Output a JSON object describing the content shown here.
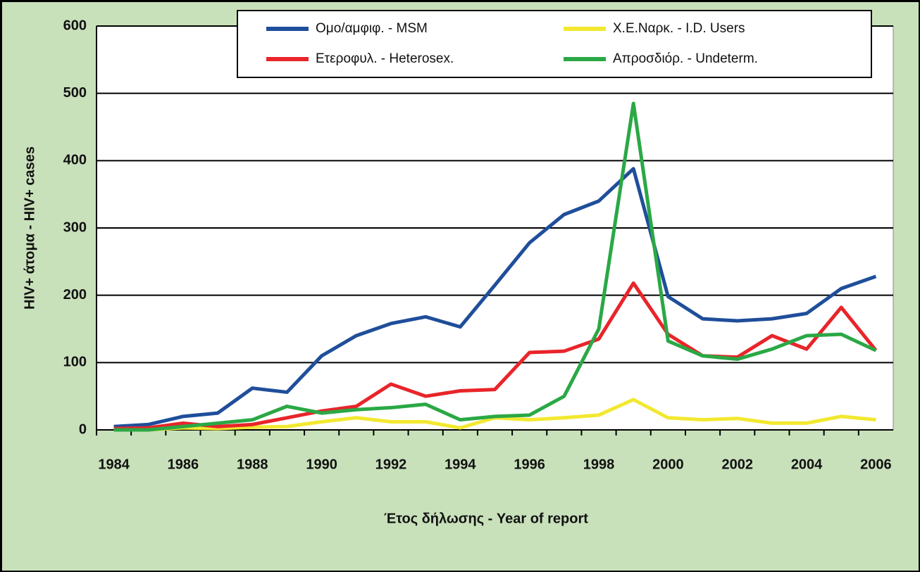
{
  "chart_data": {
    "type": "line",
    "ylabel": "HIV+ άτομα - HIV+ cases",
    "xlabel": "Έτος δήλωσης - Year of report",
    "categories": [
      "1984",
      null,
      "1986",
      null,
      "1988",
      null,
      "1990",
      null,
      "1992",
      null,
      "1994",
      null,
      "1996",
      null,
      "1998",
      null,
      "2000",
      null,
      "2002",
      null,
      "2004",
      null,
      "2006"
    ],
    "series": [
      {
        "name": "Ομο/αμφιφ. - MSM",
        "color": "#1f4e9a",
        "values": [
          5,
          8,
          20,
          25,
          62,
          56,
          110,
          140,
          158,
          168,
          153,
          215,
          278,
          320,
          340,
          388,
          198,
          165,
          162,
          165,
          173,
          210,
          228
        ]
      },
      {
        "name": "Χ.Ε.Ναρκ. - I.D. Users",
        "color": "#f2e830",
        "values": [
          0,
          0,
          3,
          2,
          4,
          5,
          12,
          18,
          12,
          12,
          3,
          18,
          15,
          18,
          22,
          45,
          18,
          15,
          17,
          10,
          10,
          20,
          15
        ]
      },
      {
        "name": "Ετεροφυλ. - Heterosex.",
        "color": "#e8252a",
        "values": [
          2,
          3,
          10,
          5,
          8,
          18,
          28,
          35,
          68,
          50,
          58,
          60,
          115,
          117,
          135,
          218,
          142,
          110,
          108,
          140,
          120,
          182,
          118
        ]
      },
      {
        "name": "Απροσδιόρ. - Undeterm.",
        "color": "#2aa845",
        "values": [
          0,
          0,
          5,
          10,
          15,
          35,
          25,
          30,
          33,
          38,
          15,
          20,
          22,
          50,
          150,
          485,
          132,
          110,
          105,
          120,
          140,
          142,
          118
        ]
      }
    ],
    "ylim": [
      0,
      600
    ],
    "yticks": [
      0,
      100,
      200,
      300,
      400,
      500,
      600
    ],
    "grid": true
  }
}
